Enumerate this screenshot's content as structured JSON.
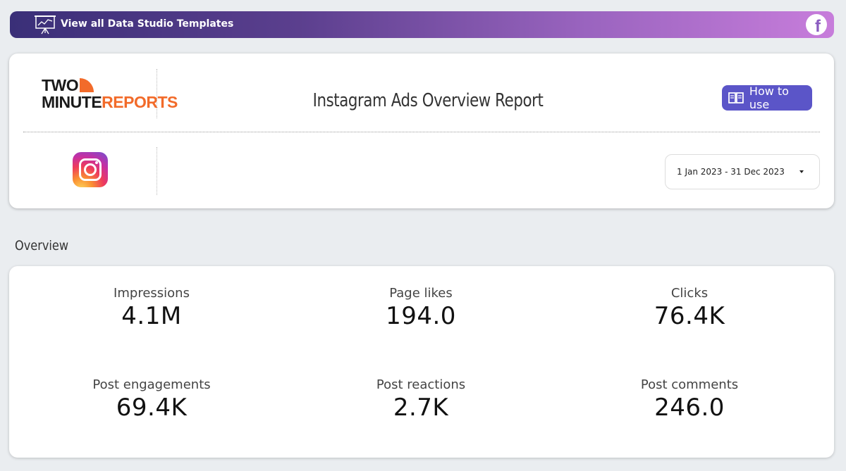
{
  "banner": {
    "text": "View all Data Studio Templates",
    "presentation_icon": "presentation-chart-icon",
    "social_icon": "facebook-icon",
    "social_glyph": "f",
    "gradient_start": "#3a2f78",
    "gradient_end": "#c77ddb"
  },
  "header": {
    "logo": {
      "line1": "TWO",
      "line2_dark": "MINUTE",
      "line2_accent": "REPORTS"
    },
    "title": "Instagram Ads Overview Report",
    "how_to_button": "How to use",
    "how_to_icon": "book-icon",
    "platform_icon": "instagram-icon",
    "date_range": "1 Jan 2023 - 31 Dec 2023",
    "accent_color": "#5b55c8",
    "logo_accent_color": "#f26b2a"
  },
  "overview": {
    "label": "Overview",
    "metrics": [
      {
        "label": "Impressions",
        "value": "4.1M"
      },
      {
        "label": "Page likes",
        "value": "194.0"
      },
      {
        "label": "Clicks",
        "value": "76.4K"
      },
      {
        "label": "Post engagements",
        "value": "69.4K"
      },
      {
        "label": "Post reactions",
        "value": "2.7K"
      },
      {
        "label": "Post comments",
        "value": "246.0"
      }
    ]
  }
}
